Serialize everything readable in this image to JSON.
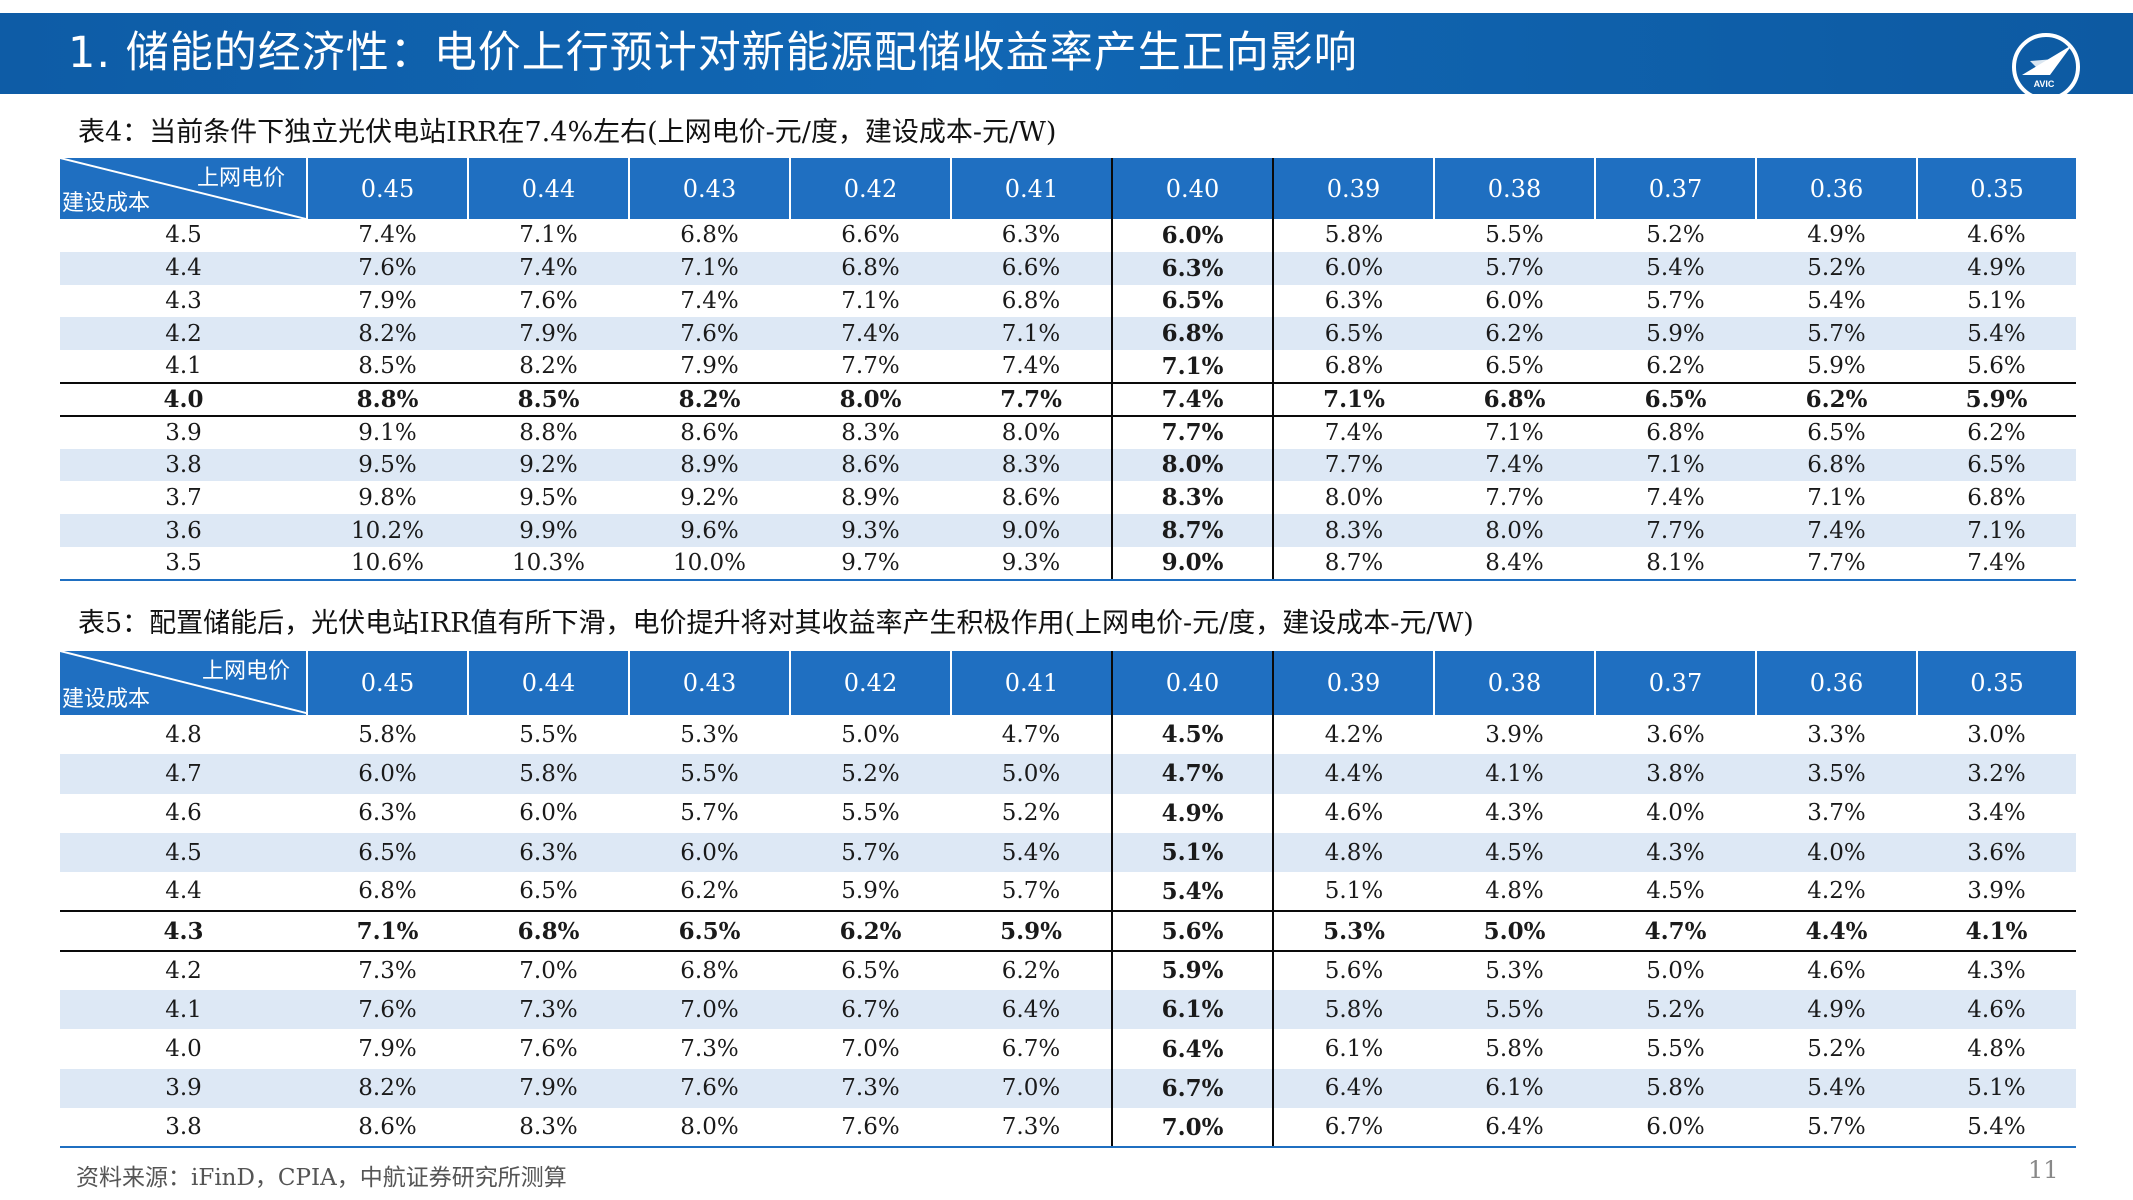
{
  "header": {
    "title": "1. 储能的经济性：电价上行预计对新能源配储收益率产生正向影响",
    "logo_text": "AVIC"
  },
  "table4": {
    "caption": "表4：当前条件下独立光伏电站IRR在7.4%左右(上网电价-元/度，建设成本-元/W)",
    "corner_price": "上网电价",
    "corner_cost": "建设成本",
    "columns": [
      "0.45",
      "0.44",
      "0.43",
      "0.42",
      "0.41",
      "0.40",
      "0.39",
      "0.38",
      "0.37",
      "0.36",
      "0.35"
    ],
    "rows": [
      {
        "cost": "4.5",
        "values": [
          "7.4%",
          "7.1%",
          "6.8%",
          "6.6%",
          "6.3%",
          "6.0%",
          "5.8%",
          "5.5%",
          "5.2%",
          "4.9%",
          "4.6%"
        ]
      },
      {
        "cost": "4.4",
        "values": [
          "7.6%",
          "7.4%",
          "7.1%",
          "6.8%",
          "6.6%",
          "6.3%",
          "6.0%",
          "5.7%",
          "5.4%",
          "5.2%",
          "4.9%"
        ]
      },
      {
        "cost": "4.3",
        "values": [
          "7.9%",
          "7.6%",
          "7.4%",
          "7.1%",
          "6.8%",
          "6.5%",
          "6.3%",
          "6.0%",
          "5.7%",
          "5.4%",
          "5.1%"
        ]
      },
      {
        "cost": "4.2",
        "values": [
          "8.2%",
          "7.9%",
          "7.6%",
          "7.4%",
          "7.1%",
          "6.8%",
          "6.5%",
          "6.2%",
          "5.9%",
          "5.7%",
          "5.4%"
        ]
      },
      {
        "cost": "4.1",
        "values": [
          "8.5%",
          "8.2%",
          "7.9%",
          "7.7%",
          "7.4%",
          "7.1%",
          "6.8%",
          "6.5%",
          "6.2%",
          "5.9%",
          "5.6%"
        ]
      },
      {
        "cost": "4.0",
        "values": [
          "8.8%",
          "8.5%",
          "8.2%",
          "8.0%",
          "7.7%",
          "7.4%",
          "7.1%",
          "6.8%",
          "6.5%",
          "6.2%",
          "5.9%"
        ]
      },
      {
        "cost": "3.9",
        "values": [
          "9.1%",
          "8.8%",
          "8.6%",
          "8.3%",
          "8.0%",
          "7.7%",
          "7.4%",
          "7.1%",
          "6.8%",
          "6.5%",
          "6.2%"
        ]
      },
      {
        "cost": "3.8",
        "values": [
          "9.5%",
          "9.2%",
          "8.9%",
          "8.6%",
          "8.3%",
          "8.0%",
          "7.7%",
          "7.4%",
          "7.1%",
          "6.8%",
          "6.5%"
        ]
      },
      {
        "cost": "3.7",
        "values": [
          "9.8%",
          "9.5%",
          "9.2%",
          "8.9%",
          "8.6%",
          "8.3%",
          "8.0%",
          "7.7%",
          "7.4%",
          "7.1%",
          "6.8%"
        ]
      },
      {
        "cost": "3.6",
        "values": [
          "10.2%",
          "9.9%",
          "9.6%",
          "9.3%",
          "9.0%",
          "8.7%",
          "8.3%",
          "8.0%",
          "7.7%",
          "7.4%",
          "7.1%"
        ]
      },
      {
        "cost": "3.5",
        "values": [
          "10.6%",
          "10.3%",
          "10.0%",
          "9.7%",
          "9.3%",
          "9.0%",
          "8.7%",
          "8.4%",
          "8.1%",
          "7.7%",
          "7.4%"
        ]
      }
    ]
  },
  "table5": {
    "caption": "表5：配置储能后，光伏电站IRR值有所下滑，电价提升将对其收益率产生积极作用(上网电价-元/度，建设成本-元/W)",
    "corner_price": "上网电价",
    "corner_cost": "建设成本",
    "columns": [
      "0.45",
      "0.44",
      "0.43",
      "0.42",
      "0.41",
      "0.40",
      "0.39",
      "0.38",
      "0.37",
      "0.36",
      "0.35"
    ],
    "rows": [
      {
        "cost": "4.8",
        "values": [
          "5.8%",
          "5.5%",
          "5.3%",
          "5.0%",
          "4.7%",
          "4.5%",
          "4.2%",
          "3.9%",
          "3.6%",
          "3.3%",
          "3.0%"
        ]
      },
      {
        "cost": "4.7",
        "values": [
          "6.0%",
          "5.8%",
          "5.5%",
          "5.2%",
          "5.0%",
          "4.7%",
          "4.4%",
          "4.1%",
          "3.8%",
          "3.5%",
          "3.2%"
        ]
      },
      {
        "cost": "4.6",
        "values": [
          "6.3%",
          "6.0%",
          "5.7%",
          "5.5%",
          "5.2%",
          "4.9%",
          "4.6%",
          "4.3%",
          "4.0%",
          "3.7%",
          "3.4%"
        ]
      },
      {
        "cost": "4.5",
        "values": [
          "6.5%",
          "6.3%",
          "6.0%",
          "5.7%",
          "5.4%",
          "5.1%",
          "4.8%",
          "4.5%",
          "4.3%",
          "4.0%",
          "3.6%"
        ]
      },
      {
        "cost": "4.4",
        "values": [
          "6.8%",
          "6.5%",
          "6.2%",
          "5.9%",
          "5.7%",
          "5.4%",
          "5.1%",
          "4.8%",
          "4.5%",
          "4.2%",
          "3.9%"
        ]
      },
      {
        "cost": "4.3",
        "values": [
          "7.1%",
          "6.8%",
          "6.5%",
          "6.2%",
          "5.9%",
          "5.6%",
          "5.3%",
          "5.0%",
          "4.7%",
          "4.4%",
          "4.1%"
        ]
      },
      {
        "cost": "4.2",
        "values": [
          "7.3%",
          "7.0%",
          "6.8%",
          "6.5%",
          "6.2%",
          "5.9%",
          "5.6%",
          "5.3%",
          "5.0%",
          "4.6%",
          "4.3%"
        ]
      },
      {
        "cost": "4.1",
        "values": [
          "7.6%",
          "7.3%",
          "7.0%",
          "6.7%",
          "6.4%",
          "6.1%",
          "5.8%",
          "5.5%",
          "5.2%",
          "4.9%",
          "4.6%"
        ]
      },
      {
        "cost": "4.0",
        "values": [
          "7.9%",
          "7.6%",
          "7.3%",
          "7.0%",
          "6.7%",
          "6.4%",
          "6.1%",
          "5.8%",
          "5.5%",
          "5.2%",
          "4.8%"
        ]
      },
      {
        "cost": "3.9",
        "values": [
          "8.2%",
          "7.9%",
          "7.6%",
          "7.3%",
          "7.0%",
          "6.7%",
          "6.4%",
          "6.1%",
          "5.8%",
          "5.4%",
          "5.1%"
        ]
      },
      {
        "cost": "3.8",
        "values": [
          "8.6%",
          "8.3%",
          "8.0%",
          "7.6%",
          "7.3%",
          "7.0%",
          "6.7%",
          "6.4%",
          "6.0%",
          "5.7%",
          "5.4%"
        ]
      }
    ]
  },
  "footer": {
    "source": "资料来源：iFinD，CPIA，中航证券研究所测算",
    "page": "11"
  }
}
